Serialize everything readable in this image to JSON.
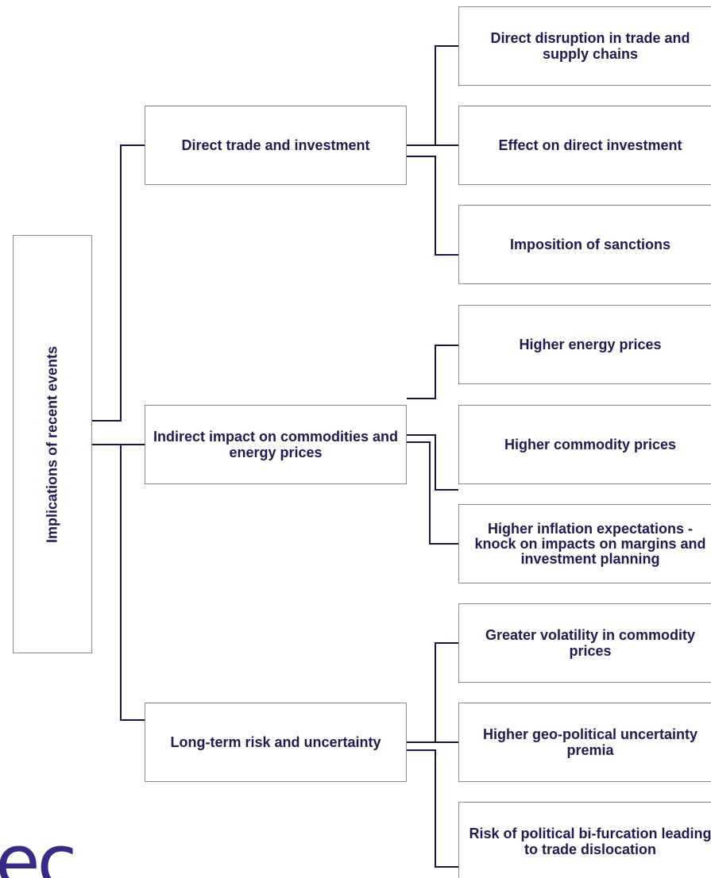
{
  "root": "Implications of recent events",
  "branches": [
    {
      "label": "Direct trade and investment",
      "children": [
        "Direct disruption in trade and supply chains",
        "Effect on direct investment",
        "Imposition of sanctions"
      ]
    },
    {
      "label": "Indirect impact on commodities and energy prices",
      "children": [
        "Higher energy prices",
        "Higher commodity prices",
        "Higher inflation expectations - knock on impacts on margins and investment planning"
      ]
    },
    {
      "label": "Long-term risk and uncertainty",
      "children": [
        "Greater volatility in commodity prices",
        "Higher geo-political uncertainty premia",
        "Risk of political bi-furcation leading to trade dislocation"
      ]
    }
  ],
  "logo": "ec"
}
